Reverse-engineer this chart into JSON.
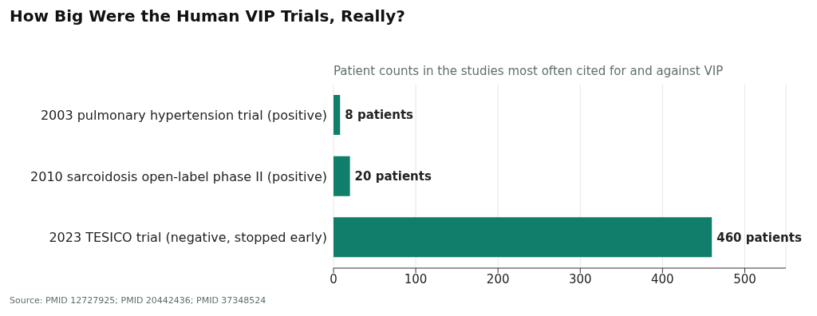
{
  "chart_data": {
    "type": "bar",
    "orientation": "horizontal",
    "title": "How Big Were the Human VIP Trials, Really?",
    "subtitle": "Patient counts in the studies most often cited for and against VIP",
    "categories": [
      "2003 pulmonary hypertension trial (positive)",
      "2010 sarcoidosis open-label phase II (positive)",
      "2023 TESICO trial (negative, stopped early)"
    ],
    "values": [
      8,
      20,
      460
    ],
    "color": "#107e6a",
    "value_labels": [
      "8 patients",
      "20 patients",
      "460 patients"
    ],
    "xlim": [
      0,
      550
    ],
    "xticks": [
      0,
      100,
      200,
      300,
      400,
      500
    ],
    "grid": "x",
    "annotations": [
      "Source: PMID 12727925; PMID 20442436; PMID 37348524"
    ]
  }
}
